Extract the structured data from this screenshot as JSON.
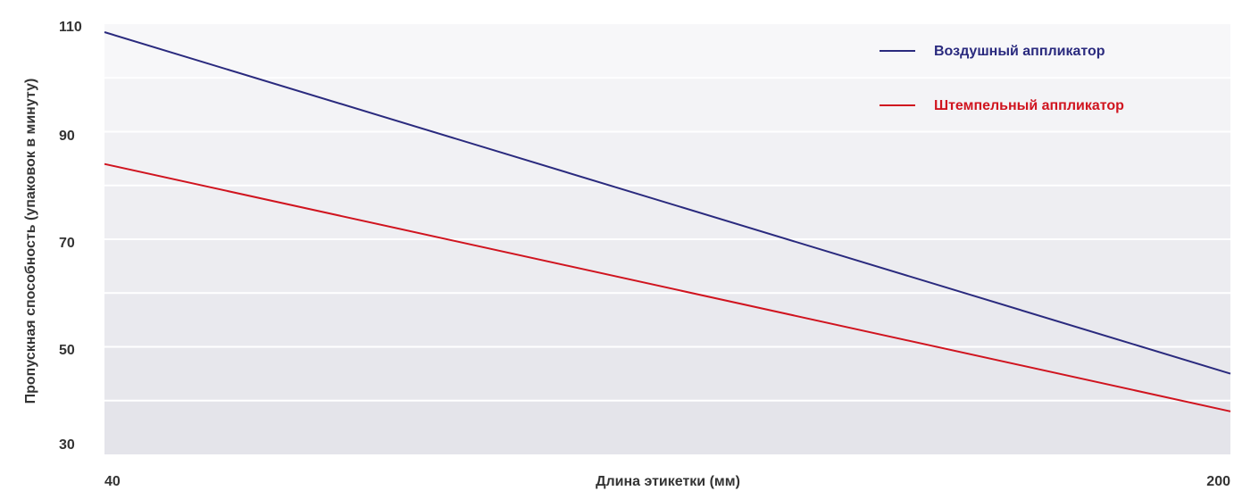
{
  "chart_data": {
    "type": "line",
    "title": "",
    "xlabel": "Длина этикетки (мм)",
    "ylabel": "Пропускная способность (упаковок в минуту)",
    "x": [
      40,
      200
    ],
    "xticks": [
      "40",
      "200"
    ],
    "xlim": [
      40,
      200
    ],
    "ylim": [
      30,
      110
    ],
    "yticks": [
      "30",
      "50",
      "70",
      "90",
      "110"
    ],
    "grid": true,
    "legend_position": "top-right",
    "series": [
      {
        "name": "Воздушный аппликатор",
        "color": "#2a2a7e",
        "values": [
          108.5,
          45
        ]
      },
      {
        "name": "Штемпельный аппликатор",
        "color": "#d0141f",
        "values": [
          84,
          38
        ]
      }
    ]
  }
}
